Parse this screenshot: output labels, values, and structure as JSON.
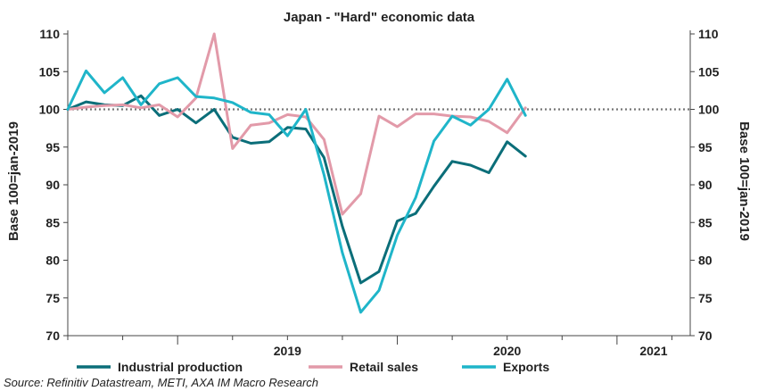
{
  "chart_data": {
    "type": "line",
    "title": "Japan - \"Hard\" economic data",
    "ylabel_left": "Base 100=jan-2019",
    "ylabel_right": "Base 100=jan-2019",
    "ylim": [
      70,
      110
    ],
    "yticks": [
      70,
      75,
      80,
      85,
      90,
      95,
      100,
      105,
      110
    ],
    "xlim": [
      "2018-07",
      "2021-05"
    ],
    "year_labels": [
      {
        "label": "2019",
        "center": "2019-07"
      },
      {
        "label": "2020",
        "center": "2020-07"
      },
      {
        "label": "2021",
        "center": "2021-03"
      }
    ],
    "reference_line": 100,
    "grid": false,
    "legend_position": "bottom",
    "series": [
      {
        "name": "Industrial production",
        "color": "#0b6e79",
        "points": [
          [
            "2018-07",
            100.0
          ],
          [
            "2018-08",
            101.0
          ],
          [
            "2018-09",
            100.6
          ],
          [
            "2018-10",
            100.5
          ],
          [
            "2018-11",
            101.8
          ],
          [
            "2018-12",
            99.2
          ],
          [
            "2019-01",
            100.0
          ],
          [
            "2019-02",
            98.2
          ],
          [
            "2019-03",
            100.0
          ],
          [
            "2019-04",
            96.3
          ],
          [
            "2019-05",
            95.5
          ],
          [
            "2019-06",
            95.7
          ],
          [
            "2019-07",
            97.6
          ],
          [
            "2019-08",
            97.4
          ],
          [
            "2019-09",
            93.6
          ],
          [
            "2019-10",
            84.5
          ],
          [
            "2019-11",
            77.0
          ],
          [
            "2019-12",
            78.5
          ],
          [
            "2020-01",
            85.2
          ],
          [
            "2020-02",
            86.2
          ],
          [
            "2020-03",
            89.8
          ],
          [
            "2020-04",
            93.1
          ],
          [
            "2020-05",
            92.6
          ],
          [
            "2020-06",
            91.6
          ],
          [
            "2020-07",
            95.7
          ],
          [
            "2020-08",
            93.8
          ]
        ]
      },
      {
        "name": "Retail sales",
        "color": "#e29aa9",
        "points": [
          [
            "2018-07",
            100.0
          ],
          [
            "2018-08",
            100.3
          ],
          [
            "2018-09",
            100.5
          ],
          [
            "2018-10",
            100.6
          ],
          [
            "2018-11",
            100.2
          ],
          [
            "2018-12",
            100.6
          ],
          [
            "2019-01",
            99.0
          ],
          [
            "2019-02",
            101.5
          ],
          [
            "2019-03",
            110.0
          ],
          [
            "2019-04",
            94.8
          ],
          [
            "2019-05",
            97.9
          ],
          [
            "2019-06",
            98.2
          ],
          [
            "2019-07",
            99.3
          ],
          [
            "2019-08",
            99.0
          ],
          [
            "2019-09",
            96.0
          ],
          [
            "2019-10",
            86.1
          ],
          [
            "2019-11",
            88.8
          ],
          [
            "2019-12",
            99.1
          ],
          [
            "2020-01",
            97.7
          ],
          [
            "2020-02",
            99.4
          ],
          [
            "2020-03",
            99.4
          ],
          [
            "2020-04",
            99.1
          ],
          [
            "2020-05",
            99.0
          ],
          [
            "2020-06",
            98.4
          ],
          [
            "2020-07",
            96.9
          ],
          [
            "2020-08",
            100.2
          ]
        ]
      },
      {
        "name": "Exports",
        "color": "#1fb5c9",
        "points": [
          [
            "2018-07",
            100.0
          ],
          [
            "2018-08",
            105.1
          ],
          [
            "2018-09",
            102.2
          ],
          [
            "2018-10",
            104.2
          ],
          [
            "2018-11",
            100.6
          ],
          [
            "2018-12",
            103.4
          ],
          [
            "2019-01",
            104.2
          ],
          [
            "2019-02",
            101.7
          ],
          [
            "2019-03",
            101.5
          ],
          [
            "2019-04",
            100.9
          ],
          [
            "2019-05",
            99.6
          ],
          [
            "2019-06",
            99.3
          ],
          [
            "2019-07",
            96.5
          ],
          [
            "2019-08",
            100.0
          ],
          [
            "2019-09",
            91.3
          ],
          [
            "2019-10",
            81.0
          ],
          [
            "2019-11",
            73.1
          ],
          [
            "2019-12",
            76.0
          ],
          [
            "2020-01",
            83.3
          ],
          [
            "2020-02",
            88.3
          ],
          [
            "2020-03",
            95.8
          ],
          [
            "2020-04",
            99.1
          ],
          [
            "2020-05",
            97.9
          ],
          [
            "2020-06",
            100.0
          ],
          [
            "2020-07",
            104.0
          ],
          [
            "2020-08",
            99.2
          ]
        ]
      }
    ]
  },
  "source": "Source: Refinitiv Datastream, METI, AXA IM Macro Research"
}
